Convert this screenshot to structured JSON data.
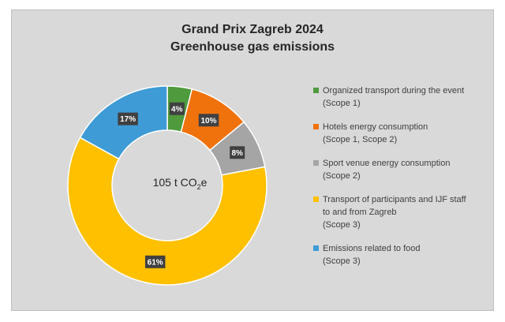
{
  "chart_data": {
    "type": "pie",
    "variant": "donut",
    "title": [
      "Grand Prix Zagreb 2024",
      "Greenhouse gas emissions"
    ],
    "center_label": {
      "prefix": "105 t CO",
      "sub": "2",
      "suffix": "e"
    },
    "legend_position": "right",
    "slices": [
      {
        "label_lines": [
          "Organized transport during the event",
          "(Scope 1)"
        ],
        "value": 4,
        "data_label": "4%",
        "color": "#4e9a3d"
      },
      {
        "label_lines": [
          "Hotels energy consumption",
          "(Scope 1, Scope 2)"
        ],
        "value": 10,
        "data_label": "10%",
        "color": "#f0720c"
      },
      {
        "label_lines": [
          "Sport venue energy consumption",
          "(Scope 2)"
        ],
        "value": 8,
        "data_label": "8%",
        "color": "#a5a5a5"
      },
      {
        "label_lines": [
          "Transport of participants and IJF staff",
          "to and from Zagreb",
          "(Scope 3)"
        ],
        "value": 61,
        "data_label": "61%",
        "color": "#ffc000"
      },
      {
        "label_lines": [
          "Emissions related to food",
          "(Scope 3)"
        ],
        "value": 17,
        "data_label": "17%",
        "color": "#3e9bd6"
      }
    ]
  }
}
